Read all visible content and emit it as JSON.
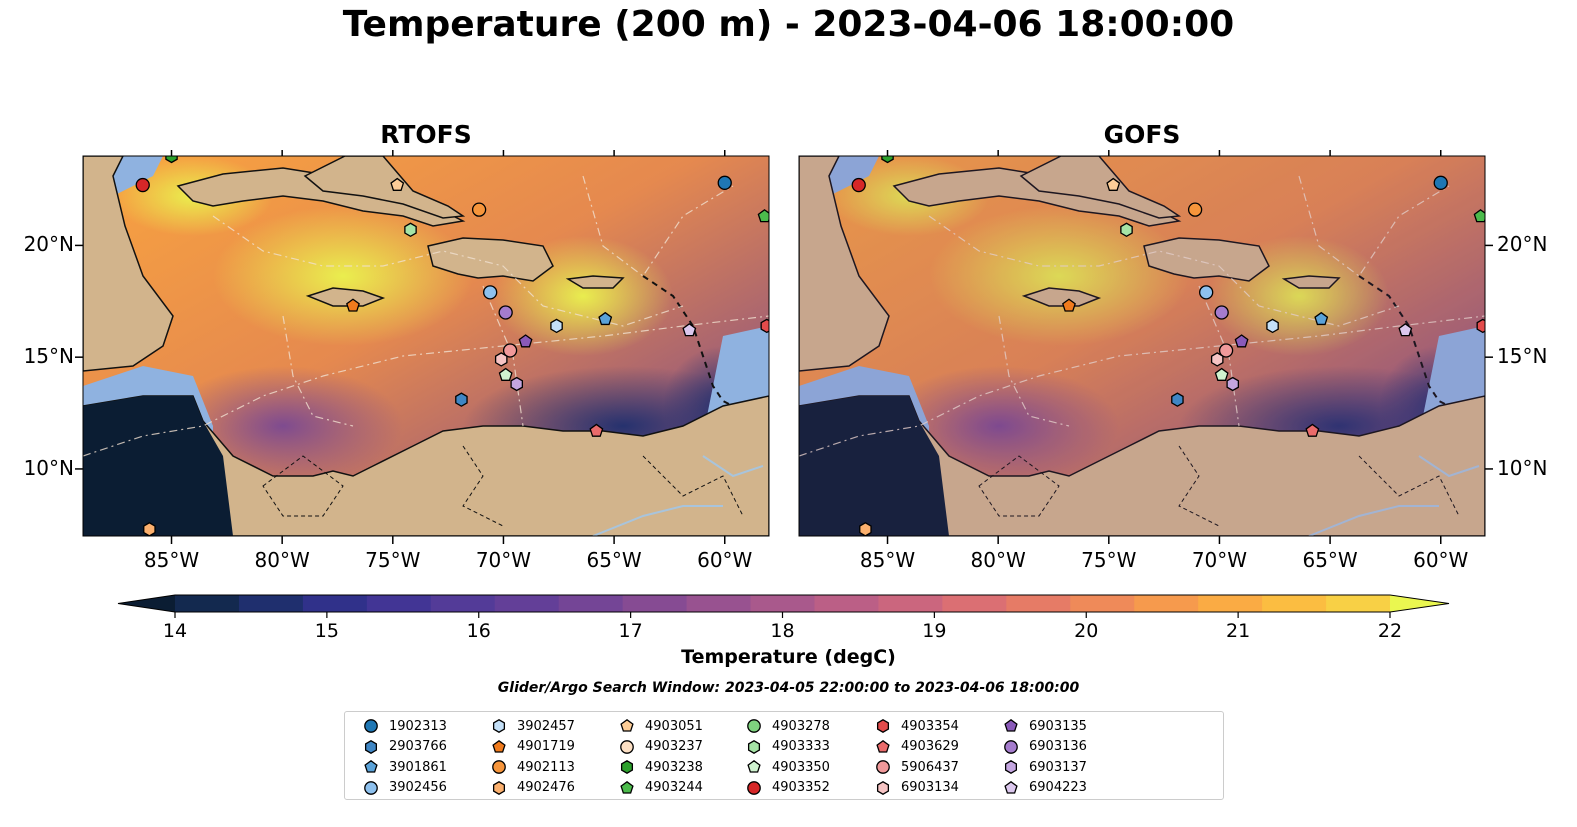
{
  "title": "Temperature (200 m) - 2023-04-06 18:00:00",
  "panels": [
    {
      "id": "rtofs",
      "title": "RTOFS"
    },
    {
      "id": "gofs",
      "title": "GOFS"
    }
  ],
  "colorbar": {
    "label": "Temperature (degC)",
    "ticks": [
      "14",
      "15",
      "16",
      "17",
      "18",
      "19",
      "20",
      "21",
      "22"
    ],
    "extend": "both",
    "colors": [
      "#0b1d33",
      "#13294f",
      "#1f2f6e",
      "#30318a",
      "#423595",
      "#533b98",
      "#633f98",
      "#744596",
      "#864b93",
      "#985290",
      "#a9598c",
      "#bb5f86",
      "#cb667e",
      "#db6f73",
      "#e67b66",
      "#ef8a59",
      "#f69a4d",
      "#faab44",
      "#fbbd41",
      "#f8d045",
      "#f2e44b"
    ],
    "over_color": "#eaf750"
  },
  "search_window": "Glider/Argo Search Window: 2023-04-05 22:00:00 to 2023-04-06 18:00:00",
  "axes": {
    "x_ticks": [
      "85°W",
      "80°W",
      "75°W",
      "70°W",
      "65°W",
      "60°W"
    ],
    "y_ticks": [
      "20°N",
      "15°N",
      "10°N"
    ],
    "xlim": [
      -89,
      -58
    ],
    "ylim": [
      7,
      24
    ]
  },
  "chart_data": {
    "type": "scatter",
    "title": "Temperature (200 m) - 2023-04-06 18:00:00",
    "xlabel": "",
    "ylabel": "",
    "xlim": [
      -89,
      -58
    ],
    "ylim": [
      7,
      24
    ],
    "series": [
      {
        "name": "1902313",
        "marker": "circle",
        "color": "#1f77b4",
        "x": [
          -60.0
        ],
        "y": [
          22.8
        ]
      },
      {
        "name": "2903766",
        "marker": "hexagon",
        "color": "#3f86c4",
        "x": [
          -71.9
        ],
        "y": [
          13.1
        ]
      },
      {
        "name": "3901861",
        "marker": "pentagon",
        "color": "#5aa2d8",
        "x": [
          -65.4
        ],
        "y": [
          16.7
        ]
      },
      {
        "name": "3902456",
        "marker": "circle",
        "color": "#8ec1ee",
        "x": [
          -70.6
        ],
        "y": [
          17.9
        ]
      },
      {
        "name": "3902457",
        "marker": "hexagon",
        "color": "#c4e0f8",
        "x": [
          -67.6
        ],
        "y": [
          16.4
        ]
      },
      {
        "name": "4901719",
        "marker": "pentagon",
        "color": "#f07b1d",
        "x": [
          -76.8
        ],
        "y": [
          17.3
        ]
      },
      {
        "name": "4902113",
        "marker": "circle",
        "color": "#f6953b",
        "x": [
          -71.1
        ],
        "y": [
          21.6
        ]
      },
      {
        "name": "4902476",
        "marker": "hexagon",
        "color": "#fbb06e",
        "x": [
          -86.0
        ],
        "y": [
          7.3
        ]
      },
      {
        "name": "4903051",
        "marker": "pentagon",
        "color": "#fdcd97",
        "x": [
          -74.8
        ],
        "y": [
          22.7
        ]
      },
      {
        "name": "4903237",
        "marker": "circle",
        "color": "#fde0c4",
        "x": [],
        "y": []
      },
      {
        "name": "4903238",
        "marker": "hexagon",
        "color": "#2ca02c",
        "x": [
          -85.0
        ],
        "y": [
          24.0
        ]
      },
      {
        "name": "4903244",
        "marker": "pentagon",
        "color": "#4cbb4c",
        "x": [
          -58.2
        ],
        "y": [
          21.3
        ]
      },
      {
        "name": "4903278",
        "marker": "circle",
        "color": "#7fd37f",
        "x": [],
        "y": []
      },
      {
        "name": "4903333",
        "marker": "hexagon",
        "color": "#a6e4a6",
        "x": [
          -74.2
        ],
        "y": [
          20.7
        ]
      },
      {
        "name": "4903350",
        "marker": "pentagon",
        "color": "#d0f3d0",
        "x": [
          -69.9
        ],
        "y": [
          14.2
        ]
      },
      {
        "name": "4903352",
        "marker": "circle",
        "color": "#d62728",
        "x": [
          -86.3
        ],
        "y": [
          22.7
        ]
      },
      {
        "name": "4903354",
        "marker": "hexagon",
        "color": "#e34b4b",
        "x": [
          -58.1
        ],
        "y": [
          16.4
        ]
      },
      {
        "name": "4903629",
        "marker": "pentagon",
        "color": "#ea6b6b",
        "x": [
          -65.8
        ],
        "y": [
          11.7
        ]
      },
      {
        "name": "5906437",
        "marker": "circle",
        "color": "#f0999a",
        "x": [
          -69.7
        ],
        "y": [
          15.3
        ]
      },
      {
        "name": "6903134",
        "marker": "hexagon",
        "color": "#f6c4c4",
        "x": [
          -70.1
        ],
        "y": [
          14.9
        ]
      },
      {
        "name": "6903135",
        "marker": "pentagon",
        "color": "#8a5ab9",
        "x": [
          -69.0
        ],
        "y": [
          15.7
        ]
      },
      {
        "name": "6903136",
        "marker": "circle",
        "color": "#a57ccd",
        "x": [
          -69.9
        ],
        "y": [
          17.0
        ]
      },
      {
        "name": "6903137",
        "marker": "hexagon",
        "color": "#c4a6e0",
        "x": [
          -69.4
        ],
        "y": [
          13.8
        ]
      },
      {
        "name": "6904223",
        "marker": "pentagon",
        "color": "#dcc8ee",
        "x": [
          -61.6
        ],
        "y": [
          16.2
        ]
      }
    ]
  }
}
